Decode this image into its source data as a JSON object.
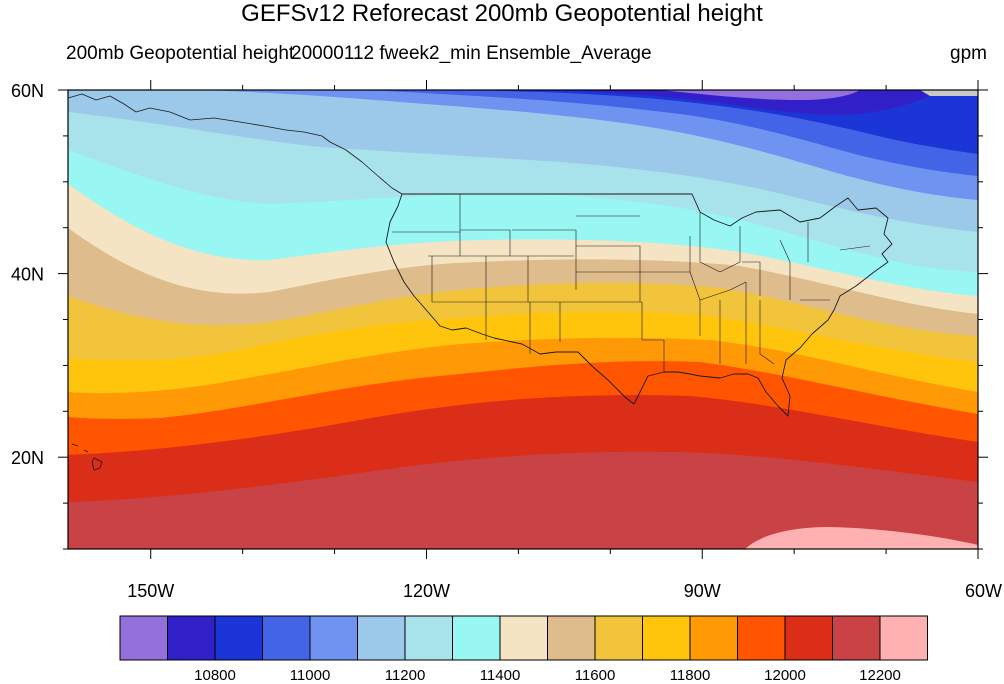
{
  "title": "GEFSv12 Reforecast 200mb Geopotential height",
  "subtitle_left": "200mb Geopotential height",
  "subtitle_center": "20000112 fweek2_min Ensemble_Average",
  "subtitle_right": "gpm",
  "axes": {
    "lat_labels": [
      {
        "value": 60,
        "label": "60N"
      },
      {
        "value": 40,
        "label": "40N"
      },
      {
        "value": 20,
        "label": "20N"
      }
    ],
    "lon_labels": [
      {
        "value": -150,
        "label": "150W"
      },
      {
        "value": -120,
        "label": "120W"
      },
      {
        "value": -90,
        "label": "90W"
      },
      {
        "value": -60,
        "label": "60W"
      }
    ],
    "lon_range": [
      -159,
      -60
    ],
    "lat_range": [
      10,
      60
    ]
  },
  "colorbar": {
    "colors": [
      "#9370DB",
      "#3120C8",
      "#1B35D6",
      "#4364E6",
      "#6F93F0",
      "#9CC8EA",
      "#A8E3EB",
      "#98F6F3",
      "#F4E4C4",
      "#DEBC8C",
      "#F2C43C",
      "#FFC40C",
      "#FF9A06",
      "#FF5400",
      "#DA2E18",
      "#C94245",
      "#FFB0B0"
    ],
    "labels": [
      {
        "index": 1,
        "text": "10800"
      },
      {
        "index": 3,
        "text": "11000"
      },
      {
        "index": 5,
        "text": "11200"
      },
      {
        "index": 7,
        "text": "11400"
      },
      {
        "index": 9,
        "text": "11600"
      },
      {
        "index": 11,
        "text": "11800"
      },
      {
        "index": 13,
        "text": "12000"
      },
      {
        "index": 15,
        "text": "12200"
      }
    ]
  }
}
